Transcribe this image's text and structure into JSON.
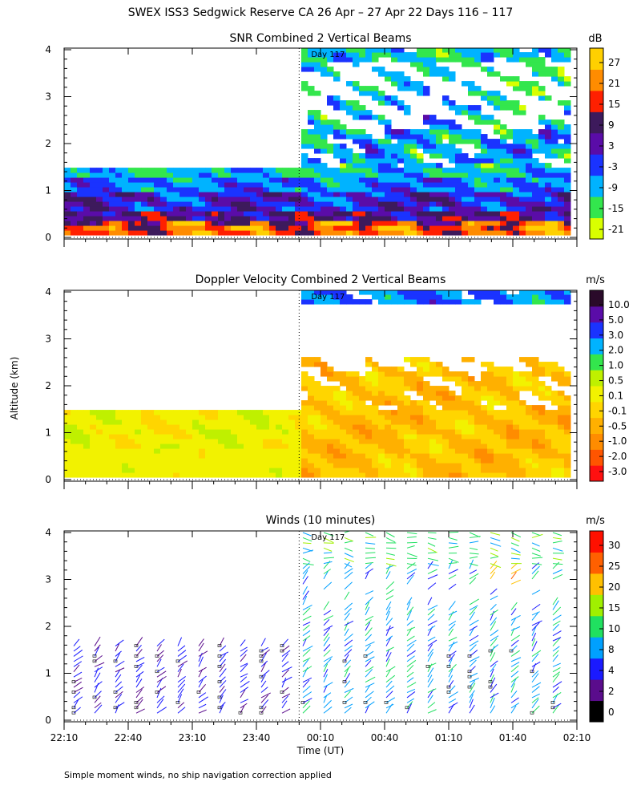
{
  "figure": {
    "title": "SWEX ISS3 Sedgwick Reserve CA  26 Apr – 27 Apr 22 Days 116 – 117",
    "ylabel": "Altitude (km)",
    "xlabel": "Time (UT)",
    "footnote": "Simple moment winds, no ship navigation correction applied",
    "day_marker": "Day 117",
    "time_ticks": [
      "22:10",
      "22:40",
      "23:10",
      "23:40",
      "00:10",
      "00:40",
      "01:10",
      "01:40",
      "02:10"
    ],
    "altitude_ticks": [
      "0",
      "1",
      "2",
      "3",
      "4"
    ]
  },
  "chart_data": [
    {
      "type": "heatmap",
      "title": "SNR Combined 2 Vertical Beams",
      "colorbar_unit": "dB",
      "colorbar_labels": [
        "27",
        "21",
        "15",
        "9",
        "3",
        "-3",
        "-9",
        "-15",
        "-21"
      ],
      "colorbar_colors": [
        "#d9ff00",
        "#33e64d",
        "#00b3ff",
        "#1a33ff",
        "#5a0ca8",
        "#3d1a5c",
        "#ff2000",
        "#ff8c00",
        "#ffd000"
      ],
      "x_range": [
        "22:10",
        "02:10"
      ],
      "ylim": [
        0,
        4
      ],
      "day_boundary_time": "00:00",
      "coverage_top_km_before_boundary": 1.4,
      "coverage_top_km_after_boundary": 4.0
    },
    {
      "type": "heatmap",
      "title": "Doppler Velocity Combined 2 Vertical Beams",
      "colorbar_unit": "m/s",
      "colorbar_labels": [
        "10.0",
        "5.0",
        "3.0",
        "2.0",
        "1.0",
        "0.5",
        "0.1",
        "-0.1",
        "-0.5",
        "-1.0",
        "-2.0",
        "-3.0"
      ],
      "colorbar_colors": [
        "#ff1010",
        "#ff5500",
        "#ff8c00",
        "#ffb000",
        "#ffd500",
        "#f2f200",
        "#bff000",
        "#33e64d",
        "#00b3ff",
        "#1a33ff",
        "#5a0ca8",
        "#2a0a2a"
      ],
      "x_range": [
        "22:10",
        "02:10"
      ],
      "ylim": [
        0,
        4
      ],
      "day_boundary_time": "00:00"
    },
    {
      "type": "scatter",
      "title": "Winds (10 minutes)",
      "colorbar_unit": "m/s",
      "colorbar_labels": [
        "30",
        "25",
        "20",
        "15",
        "10",
        "8",
        "4",
        "2",
        "0"
      ],
      "colorbar_colors": [
        "#000000",
        "#5a0c8c",
        "#1a1aff",
        "#00a0ff",
        "#20e060",
        "#a0f000",
        "#ffc000",
        "#ff6000",
        "#ff1000"
      ],
      "x_range": [
        "22:10",
        "02:10"
      ],
      "ylim": [
        0,
        4
      ],
      "day_boundary_time": "00:00"
    }
  ]
}
